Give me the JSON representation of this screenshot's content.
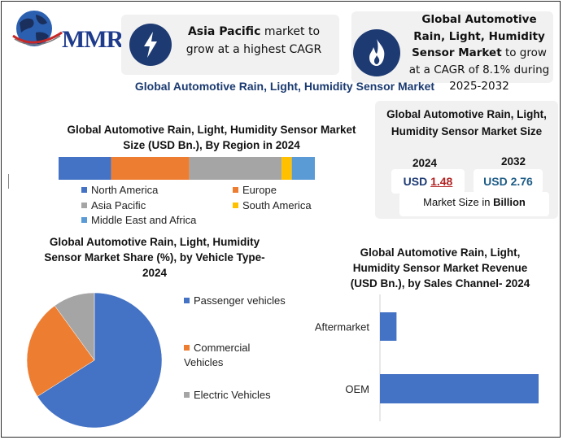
{
  "logo": {
    "text": "MMR"
  },
  "card_apac": {
    "highlight": "Asia Pacific",
    "rest": "market to grow at a highest CAGR",
    "icon": "lightning-icon"
  },
  "card_cagr": {
    "highlight": "Global Automotive Rain, Light, Humidity Sensor Market",
    "rest": "to grow at a CAGR of 8.1% during 2025-2032",
    "icon": "flame-icon"
  },
  "main_title": "Global Automotive Rain, Light, Humidity Sensor Market",
  "market_size": {
    "title": "Global Automotive Rain, Light, Humidity Sensor Market Size",
    "year_1": "2024",
    "year_2": "2032",
    "currency": "USD",
    "value_1": "1.48",
    "value_2": "USD 2.76",
    "unit_prefix": "Market Size in",
    "unit": "Billion"
  },
  "colors": {
    "north_america": "#4472c4",
    "europe": "#ed7d31",
    "asia_pacific": "#a5a5a5",
    "south_america": "#ffc000",
    "middle_east": "#5b9bd5",
    "brand": "#1d3a73"
  },
  "chart_data": [
    {
      "type": "bar",
      "orientation": "stacked-horizontal",
      "title": "Global Automotive Rain, Light, Humidity Sensor Market Size (USD Bn.), By Region in 2024",
      "series": [
        {
          "name": "North America",
          "values": [
            20.5
          ]
        },
        {
          "name": "Europe",
          "values": [
            30.5
          ]
        },
        {
          "name": "Asia Pacific",
          "values": [
            36
          ]
        },
        {
          "name": "South America",
          "values": [
            4
          ]
        },
        {
          "name": "Middle East and Africa",
          "values": [
            9
          ]
        }
      ],
      "legend_position": "bottom",
      "legend_colors": [
        "#4472c4",
        "#ed7d31",
        "#a5a5a5",
        "#ffc000",
        "#5b9bd5"
      ]
    },
    {
      "type": "pie",
      "title": "Global Automotive Rain, Light, Humidity Sensor Market Share (%), by Vehicle Type-2024",
      "categories": [
        "Passenger vehicles",
        "Commercial Vehicles",
        "Electric Vehicles"
      ],
      "values": [
        66,
        24,
        10
      ],
      "colors": [
        "#4472c4",
        "#ed7d31",
        "#a5a5a5"
      ],
      "legend_position": "right"
    },
    {
      "type": "bar",
      "orientation": "horizontal",
      "title": "Global Automotive Rain, Light, Humidity Sensor Market Revenue (USD Bn.), by Sales Channel- 2024",
      "categories": [
        "Aftermarket",
        "OEM"
      ],
      "values": [
        0.14,
        1.34
      ],
      "color": "#4472c4"
    }
  ]
}
